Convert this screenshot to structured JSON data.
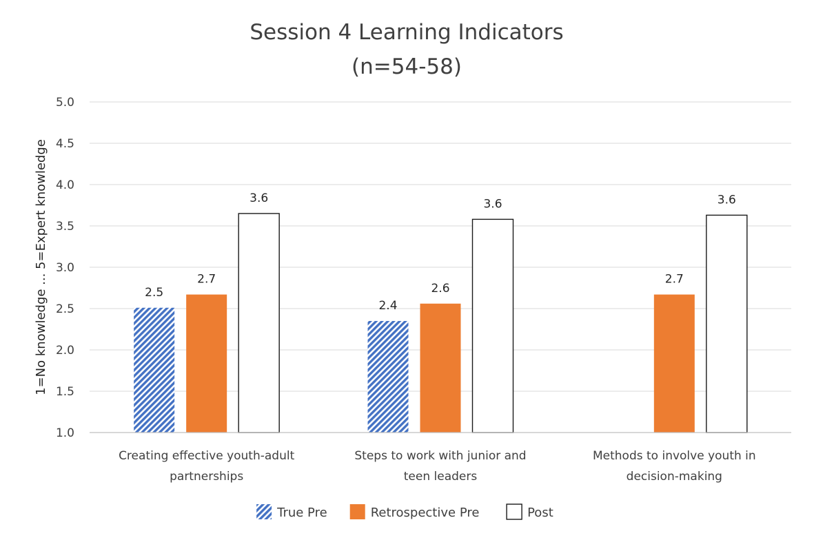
{
  "chart_data": {
    "type": "bar",
    "title_lines": [
      "Session 4 Learning Indicators",
      "(n=54-58)"
    ],
    "ylabel": "1=No knowledge ... 5=Expert knowledge",
    "xlabel": "",
    "ylim": [
      1.0,
      5.0
    ],
    "yticks": [
      "1.0",
      "1.5",
      "2.0",
      "2.5",
      "3.0",
      "3.5",
      "4.0",
      "4.5",
      "5.0"
    ],
    "grid": true,
    "legend_position": "bottom",
    "categories": [
      [
        "Creating effective youth-adult",
        "partnerships"
      ],
      [
        "Steps to work with junior and",
        "teen leaders"
      ],
      [
        "Methods to involve youth in",
        "decision-making"
      ]
    ],
    "series": [
      {
        "name": "True Pre",
        "values": [
          2.51,
          2.35,
          null
        ],
        "labels": [
          "2.5",
          "2.4",
          ""
        ],
        "color": "#4472c4",
        "pattern": "diagonal-hatch"
      },
      {
        "name": "Retrospective Pre",
        "values": [
          2.67,
          2.56,
          2.67
        ],
        "labels": [
          "2.7",
          "2.6",
          "2.7"
        ],
        "color": "#ed7d31",
        "pattern": "solid"
      },
      {
        "name": "Post",
        "values": [
          3.65,
          3.58,
          3.63
        ],
        "labels": [
          "3.6",
          "3.6",
          "3.6"
        ],
        "color": "#ffffff",
        "pattern": "outline"
      }
    ]
  }
}
